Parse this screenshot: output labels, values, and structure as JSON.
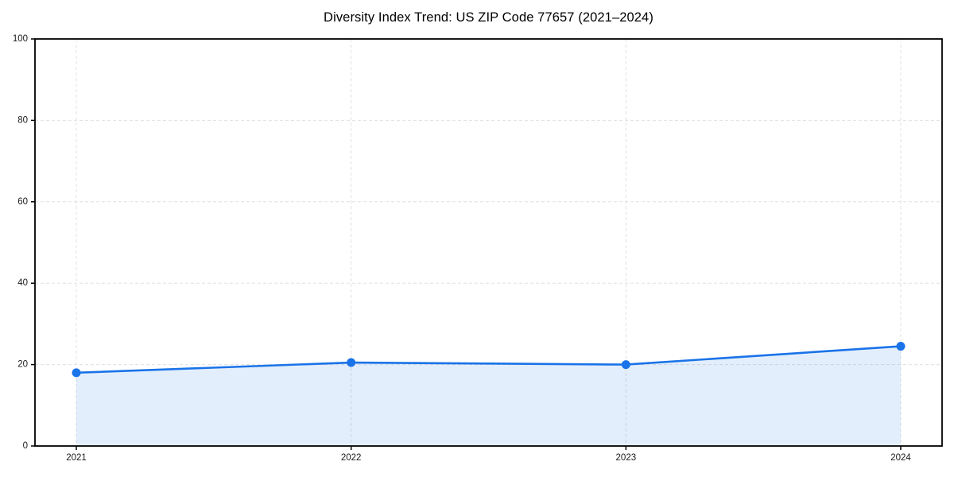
{
  "chart_data": {
    "type": "area",
    "title": "Diversity Index Trend: US ZIP Code 77657 (2021–2024)",
    "categories": [
      "2021",
      "2022",
      "2023",
      "2024"
    ],
    "series": [
      {
        "name": "Diversity Index",
        "values": [
          18.0,
          20.5,
          20.0,
          24.5
        ]
      }
    ],
    "xlabel": "",
    "ylabel": "",
    "ylim": [
      0,
      100
    ],
    "yticks": [
      0,
      20,
      40,
      60,
      80,
      100
    ],
    "grid": true,
    "grid_style": "dashed",
    "legend_position": "none",
    "marker": "circle",
    "colors": {
      "line": "#1a73e8",
      "marker": "#1a73e8",
      "fill": "rgba(26, 115, 232, 0.12)",
      "grid": "#e0e0e0",
      "spine": "#000000",
      "tick_label": "#1a1a1a",
      "title": "#000000",
      "background": "#ffffff"
    }
  }
}
